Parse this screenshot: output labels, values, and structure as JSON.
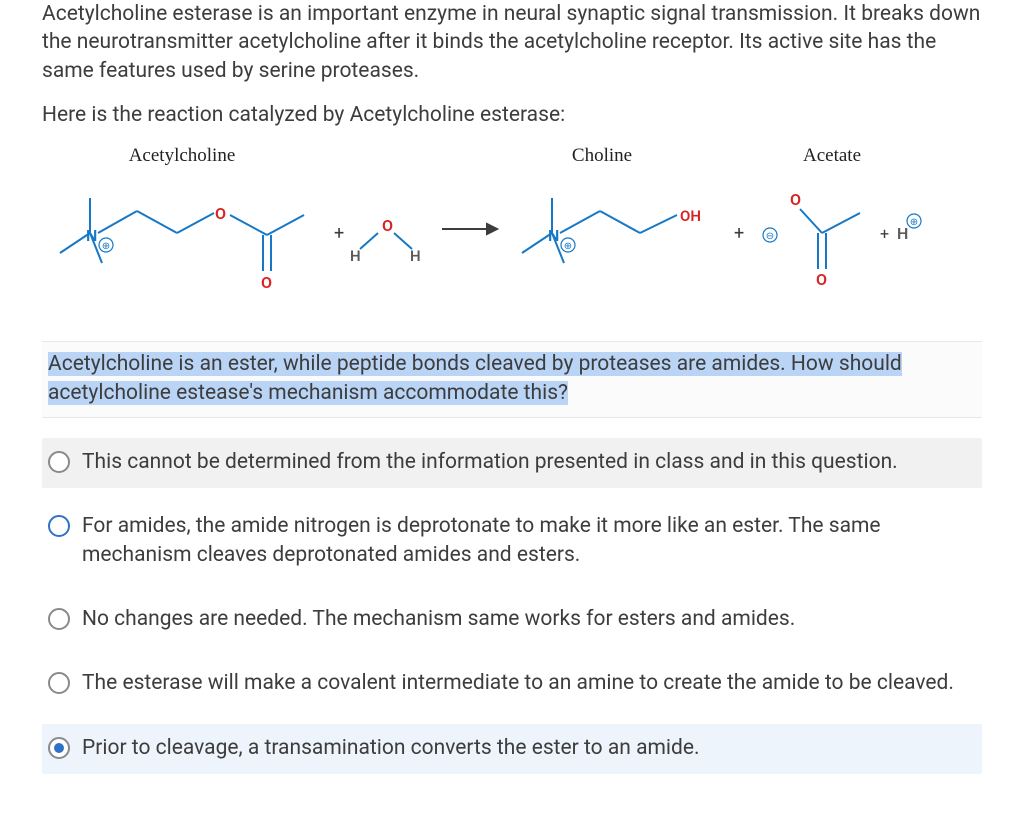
{
  "intro": "Acetylcholine esterase is an important enzyme in neural synaptic signal transmission. It breaks down the neurotransmitter acetylcholine after it binds the acetylcholine receptor. Its active site has the same features used by serine proteases.",
  "lead": "Here is the reaction catalyzed by Acetylcholine esterase:",
  "reaction": {
    "labels": {
      "acetylcholine": "Acetylcholine",
      "choline": "Choline",
      "acetate": "Acetate"
    },
    "atoms": {
      "n_label": "N",
      "o_label": "O",
      "oh_label": "OH",
      "h_label": "H",
      "plus": "+",
      "arrow": "→",
      "charge_plus": "⊕",
      "charge_minus": "⊖"
    },
    "colors": {
      "bond": "#1678c6",
      "nitrogen": "#1678c6",
      "oxygen": "#d92323",
      "text": "#3d3d3d",
      "hydrogen": "#5a5a5a"
    }
  },
  "question": {
    "pre": "Acetylcholine is an ester, while peptide bonds cleaved by proteases are amides. How should acetylcholine estease's mechanism accommodate this?"
  },
  "options": [
    {
      "text": "This cannot be determined from the information presented in class and in this question.",
      "shaded": true,
      "selected": false,
      "blue": false
    },
    {
      "text": "For amides, the amide nitrogen is deprotonate to make it more like an ester. The same mechanism cleaves deprotonated amides and esters.",
      "shaded": false,
      "selected": false,
      "blue": true
    },
    {
      "text": "No changes are needed. The mechanism same works for esters and amides.",
      "shaded": false,
      "selected": false,
      "blue": false
    },
    {
      "text": "The esterase will make a covalent intermediate to an amine to create the amide to be cleaved.",
      "shaded": false,
      "selected": false,
      "blue": false
    },
    {
      "text": "Prior to cleavage, a transamination converts the ester to an amide.",
      "shaded": false,
      "selected": true,
      "blue": false
    }
  ],
  "style": {
    "font_size_body": 21,
    "highlight_bg": "#b9d4f5",
    "shaded_bg": "#f1f1f1",
    "selected_bg": "#edf4fb",
    "radio_border": "#8a8a8a",
    "radio_blue": "#2e73c8"
  }
}
